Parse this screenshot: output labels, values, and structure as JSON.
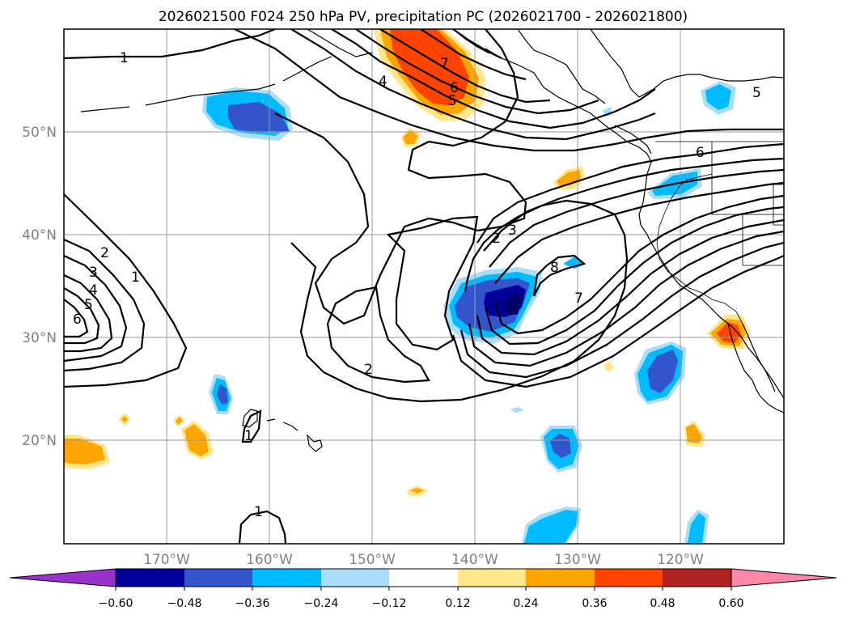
{
  "title": "2026021500 F024 250 hPa PV, precipitation PC (2026021700 - 2026021800)",
  "map": {
    "projection": "lat-lon",
    "lon_range": [
      -180,
      -110
    ],
    "lat_range": [
      10,
      60
    ],
    "lat_labels": [
      "50°N",
      "40°N",
      "30°N",
      "20°N"
    ],
    "lon_labels": [
      "170°W",
      "160°W",
      "150°W",
      "140°W",
      "130°W",
      "120°W"
    ],
    "grid": true
  },
  "colorbar": {
    "tick_labels": [
      "−0.60",
      "−0.48",
      "−0.36",
      "−0.24",
      "−0.12",
      "0.12",
      "0.24",
      "0.36",
      "0.48",
      "0.60"
    ],
    "colors": [
      "#9933cc",
      "#000099",
      "#3355cc",
      "#00bbff",
      "#aaddf8",
      "#ffffff",
      "#ffe68a",
      "#ffa500",
      "#ff4400",
      "#b22222",
      "#ff88aa"
    ],
    "extend": "both"
  },
  "contour_labels": {
    "top_left": "1",
    "upper_a": "4",
    "upper_b": "7",
    "upper_c": "6",
    "upper_d": "5",
    "right_5": "5",
    "right_6": "6",
    "left_2": "2",
    "left_3": "3",
    "left_4": "4",
    "left_5": "5",
    "left_6": "6",
    "left_1": "1",
    "mid_2": "2",
    "mid_3": "3",
    "mid_8": "8",
    "mid_7": "7",
    "lower_2": "2",
    "hawaii_1": "1",
    "bottom_1": "1"
  }
}
